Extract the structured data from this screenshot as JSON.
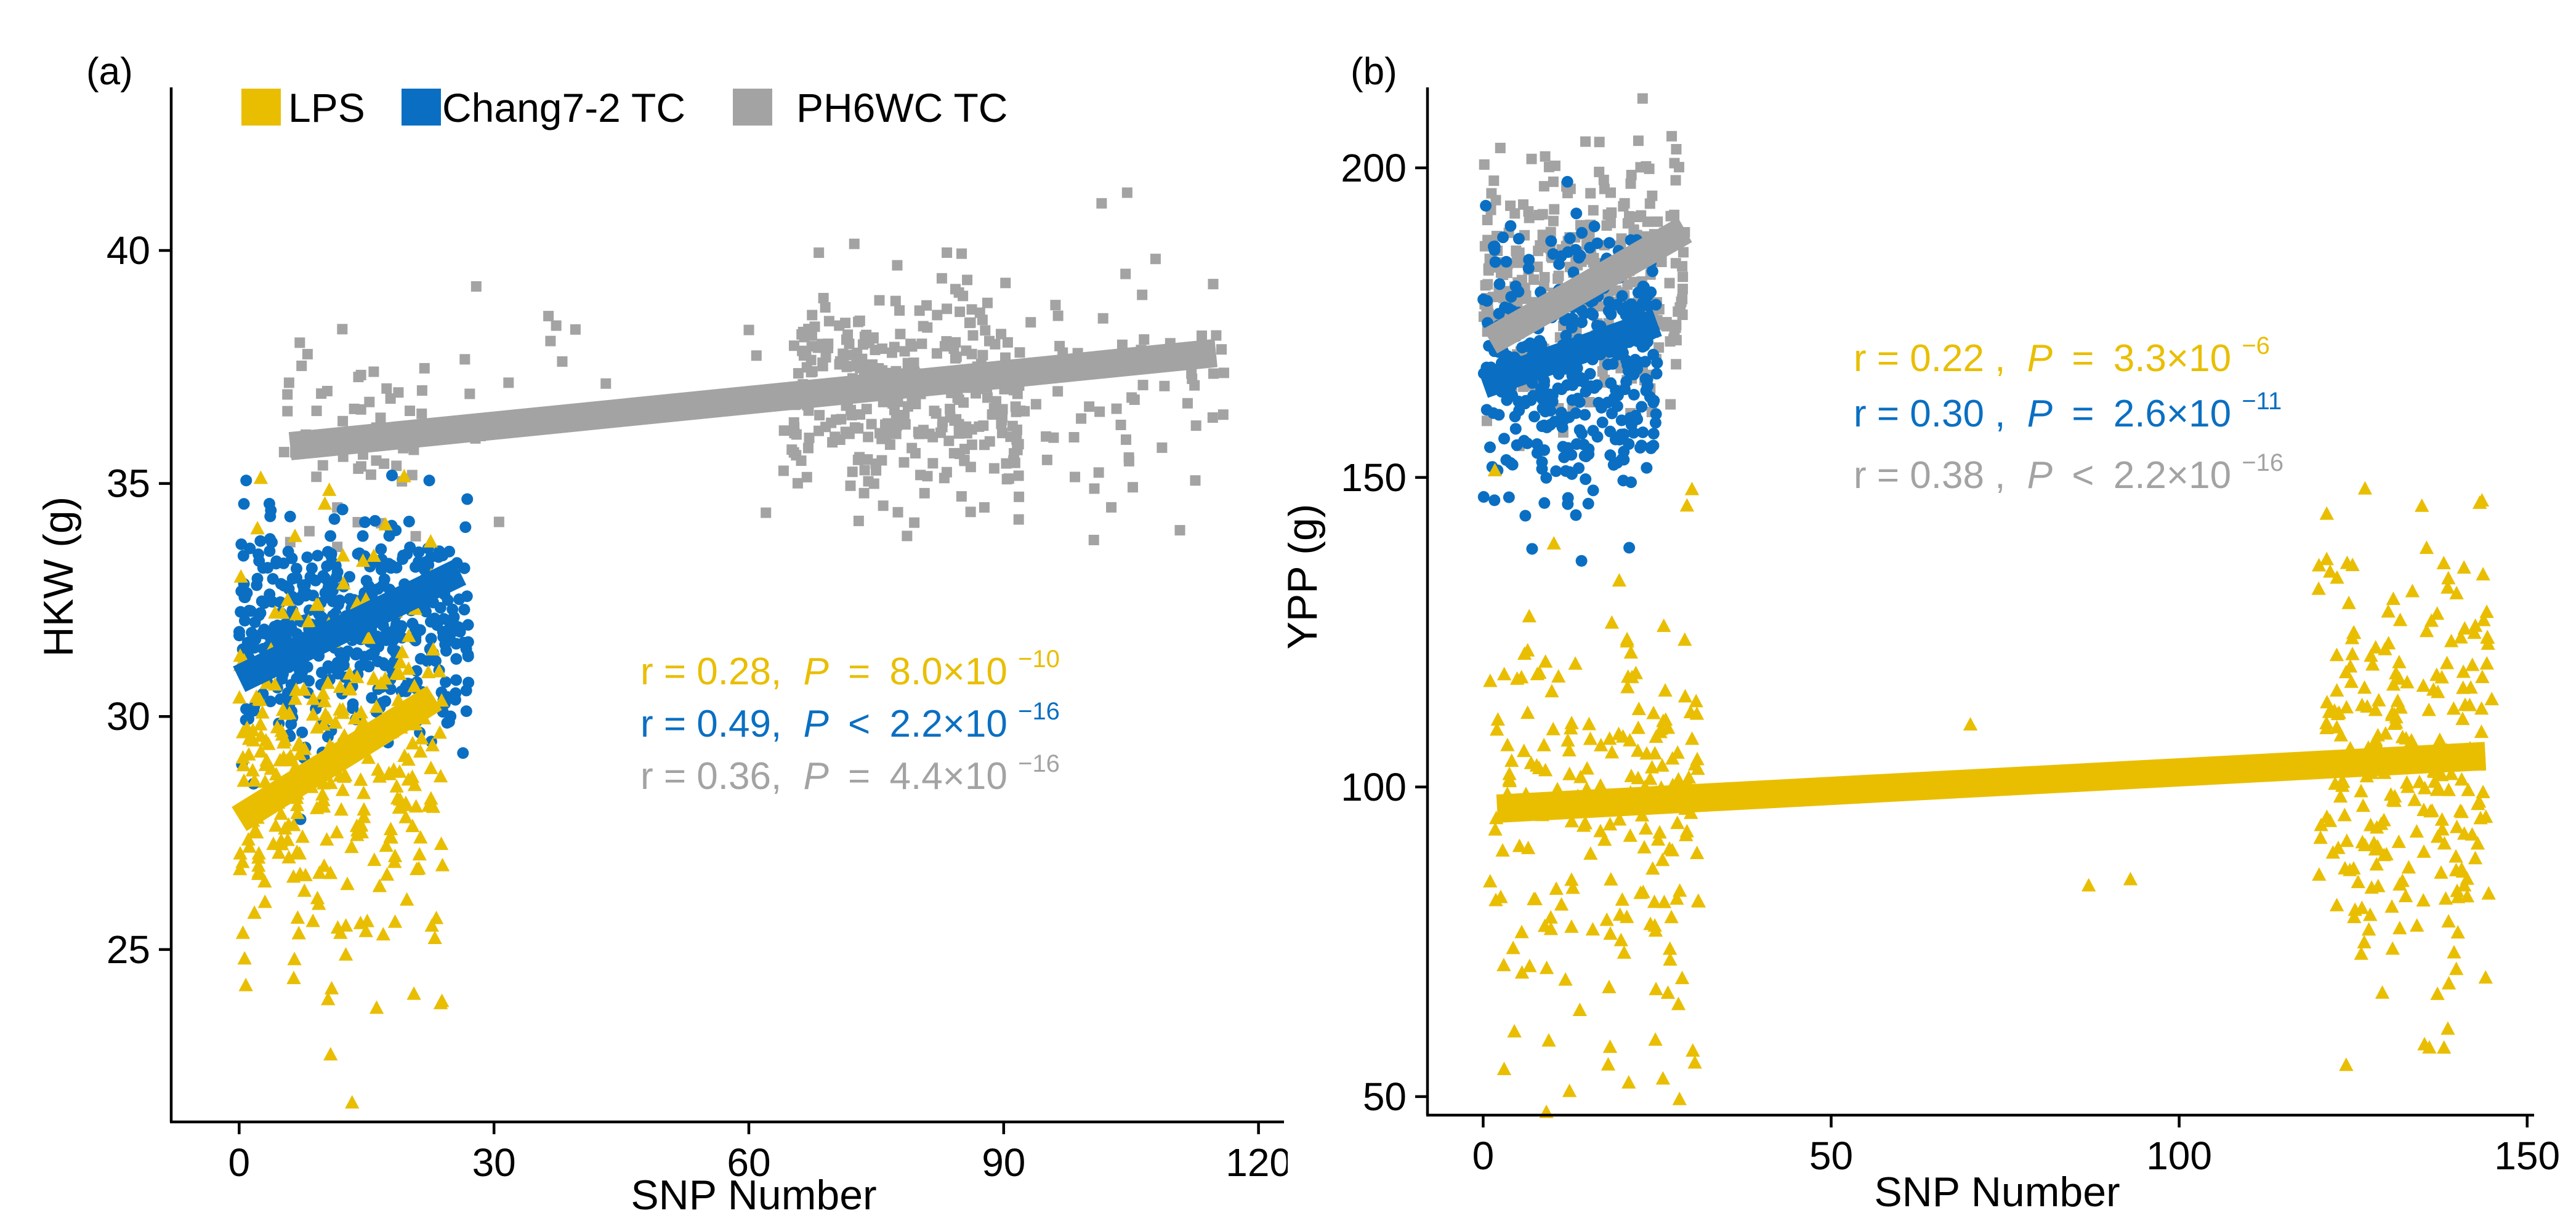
{
  "colors": {
    "LPS": "#E9BE00",
    "Chang7-2 TC": "#0A6FC2",
    "PH6WC TC": "#A3A3A3"
  },
  "legend": {
    "items": [
      {
        "name": "LPS",
        "color": "#E9BE00"
      },
      {
        "name": "Chang7-2 TC",
        "color": "#0A6FC2"
      },
      {
        "name": "PH6WC TC",
        "color": "#A3A3A3"
      }
    ]
  },
  "chart_data": [
    {
      "panel_label": "(a)",
      "type": "scatter",
      "xlabel": "SNP Number",
      "ylabel": "HKW (g)",
      "xlim": [
        -8,
        123
      ],
      "ylim": [
        21.3,
        43.5
      ],
      "xticks": [
        0,
        30,
        60,
        90,
        120
      ],
      "yticks": [
        25,
        30,
        35,
        40
      ],
      "grid": false,
      "legend_position": "top-left",
      "series": [
        {
          "name": "PH6WC TC",
          "color": "#A3A3A3",
          "marker": "square",
          "fit": {
            "x": [
              6,
              115
            ],
            "y": [
              35.8,
              37.8
            ]
          },
          "groups": [
            {
              "x_range": [
                5,
                22
              ],
              "y_mean": 36.3,
              "y_sd": 1.2,
              "n": 55
            },
            {
              "x_range": [
                24,
                45
              ],
              "y_mean": 37.4,
              "y_sd": 1.0,
              "n": 16
            },
            {
              "x_range": [
                60,
                65
              ],
              "y_mean": 36.6,
              "y_sd": 1.8,
              "n": 6
            },
            {
              "x_range": [
                65,
                92
              ],
              "y_mean": 36.9,
              "y_sd": 1.2,
              "n": 330
            },
            {
              "x_range": [
                92,
                116
              ],
              "y_mean": 37.4,
              "y_sd": 1.4,
              "n": 65
            }
          ]
        },
        {
          "name": "Chang7-2 TC",
          "color": "#0A6FC2",
          "marker": "circle",
          "fit": {
            "x": [
              0,
              26
            ],
            "y": [
              30.8,
              33.1
            ]
          },
          "groups": [
            {
              "x_range": [
                0,
                27
              ],
              "y_mean": 31.9,
              "y_sd": 1.25,
              "n": 460
            }
          ]
        },
        {
          "name": "LPS",
          "color": "#E9BE00",
          "marker": "triangle",
          "fit": {
            "x": [
              0,
              23
            ],
            "y": [
              27.8,
              30.4
            ]
          },
          "groups": [
            {
              "x_range": [
                0,
                24
              ],
              "y_mean": 28.9,
              "y_sd": 2.2,
              "n": 300
            }
          ]
        }
      ],
      "annotations": [
        {
          "series": "LPS",
          "color": "#E9BE00",
          "r": "r = 0.28,",
          "p_symbol": "P",
          "p_relation": "=",
          "p_value": "8.0×10",
          "p_exponent": "−10"
        },
        {
          "series": "Chang7-2 TC",
          "color": "#0A6FC2",
          "r": "r = 0.49,",
          "p_symbol": "P",
          "p_relation": "<",
          "p_value": "2.2×10",
          "p_exponent": "−16"
        },
        {
          "series": "PH6WC TC",
          "color": "#A3A3A3",
          "r": "r = 0.36,",
          "p_symbol": "P",
          "p_relation": "=",
          "p_value": "4.4×10",
          "p_exponent": "−16"
        }
      ]
    },
    {
      "panel_label": "(b)",
      "type": "scatter",
      "xlabel": "SNP Number",
      "ylabel": "YPP (g)",
      "xlim": [
        -8,
        151
      ],
      "ylim": [
        47,
        213
      ],
      "xticks": [
        0,
        50,
        100,
        150
      ],
      "yticks": [
        50,
        100,
        150,
        200
      ],
      "grid": false,
      "series": [
        {
          "name": "PH6WC TC",
          "color": "#A3A3A3",
          "marker": "square",
          "fit": {
            "x": [
              1,
              29
            ],
            "y": [
              172,
              190
            ]
          },
          "groups": [
            {
              "x_range": [
                0,
                29
              ],
              "y_mean": 182,
              "y_sd": 10,
              "n": 330
            }
          ]
        },
        {
          "name": "Chang7-2 TC",
          "color": "#0A6FC2",
          "marker": "circle",
          "fit": {
            "x": [
              0,
              25
            ],
            "y": [
              165,
              175
            ]
          },
          "groups": [
            {
              "x_range": [
                0,
                25
              ],
              "y_mean": 169,
              "y_sd": 11,
              "n": 380
            }
          ]
        },
        {
          "name": "LPS",
          "color": "#E9BE00",
          "marker": "triangle",
          "fit": {
            "x": [
              2,
              144
            ],
            "y": [
              96.5,
              105
            ]
          },
          "groups": [
            {
              "x_range": [
                1,
                31
              ],
              "y_mean": 96,
              "y_sd": 18,
              "n": 200
            },
            {
              "x_range": [
                120,
                145
              ],
              "y_mean": 104,
              "y_sd": 17,
              "n": 250
            }
          ],
          "points": [
            {
              "x": 70,
              "y": 110
            },
            {
              "x": 87,
              "y": 84
            },
            {
              "x": 93,
              "y": 85
            },
            {
              "x": 124,
              "y": 55
            },
            {
              "x": 30,
              "y": 148
            }
          ]
        }
      ],
      "annotations": [
        {
          "series": "LPS",
          "color": "#E9BE00",
          "r": "r = 0.22 ,",
          "p_symbol": "P",
          "p_relation": "=",
          "p_value": "3.3×10",
          "p_exponent": "−6"
        },
        {
          "series": "Chang7-2 TC",
          "color": "#0A6FC2",
          "r": "r = 0.30 ,",
          "p_symbol": "P",
          "p_relation": "=",
          "p_value": "2.6×10",
          "p_exponent": "−11"
        },
        {
          "series": "PH6WC TC",
          "color": "#A3A3A3",
          "r": "r = 0.38 ,",
          "p_symbol": "P",
          "p_relation": "<",
          "p_value": "2.2×10",
          "p_exponent": "−16"
        }
      ]
    }
  ]
}
